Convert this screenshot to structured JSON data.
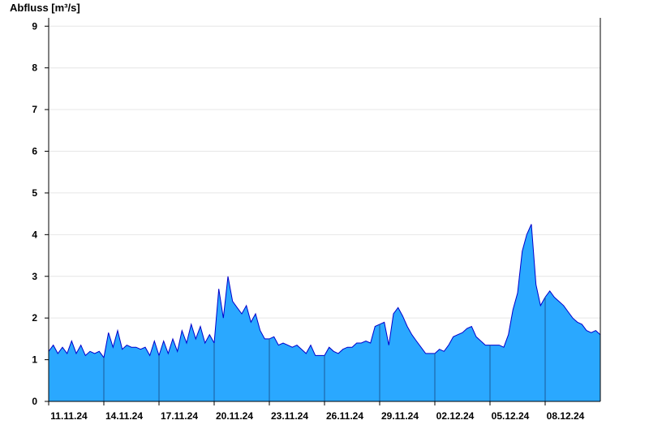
{
  "chart_data": {
    "type": "area",
    "ylabel": "Abfluss [m³/s]",
    "xlabel": "",
    "title": "",
    "ylim": [
      0,
      9.2
    ],
    "yticks": [
      0,
      1,
      2,
      3,
      4,
      5,
      6,
      7,
      8,
      9
    ],
    "xlim": [
      "2024-11-11T00:00",
      "2024-12-11T00:00"
    ],
    "xticks": [
      "11.11.24",
      "14.11.24",
      "17.11.24",
      "20.11.24",
      "23.11.24",
      "26.11.24",
      "29.11.24",
      "02.12.24",
      "05.12.24",
      "08.12.24"
    ],
    "grid": true,
    "fill_color": "#2aa8ff",
    "line_color": "#0000cc",
    "series": [
      {
        "x": [
          "2024-11-11T00:00",
          "2024-11-11T06:00",
          "2024-11-11T12:00",
          "2024-11-11T18:00",
          "2024-11-12T00:00",
          "2024-11-12T06:00",
          "2024-11-12T12:00",
          "2024-11-12T18:00",
          "2024-11-13T00:00",
          "2024-11-13T06:00",
          "2024-11-13T12:00",
          "2024-11-13T18:00",
          "2024-11-14T00:00",
          "2024-11-14T06:00",
          "2024-11-14T12:00",
          "2024-11-14T18:00",
          "2024-11-15T00:00",
          "2024-11-15T06:00",
          "2024-11-15T12:00",
          "2024-11-15T18:00",
          "2024-11-16T00:00",
          "2024-11-16T06:00",
          "2024-11-16T12:00",
          "2024-11-16T18:00",
          "2024-11-17T00:00",
          "2024-11-17T06:00",
          "2024-11-17T12:00",
          "2024-11-17T18:00",
          "2024-11-18T00:00",
          "2024-11-18T06:00",
          "2024-11-18T12:00",
          "2024-11-18T18:00",
          "2024-11-19T00:00",
          "2024-11-19T06:00",
          "2024-11-19T12:00",
          "2024-11-19T18:00",
          "2024-11-20T00:00",
          "2024-11-20T06:00",
          "2024-11-20T12:00",
          "2024-11-20T18:00",
          "2024-11-21T00:00",
          "2024-11-21T06:00",
          "2024-11-21T12:00",
          "2024-11-21T18:00",
          "2024-11-22T00:00",
          "2024-11-22T06:00",
          "2024-11-22T12:00",
          "2024-11-22T18:00",
          "2024-11-23T00:00",
          "2024-11-23T06:00",
          "2024-11-23T12:00",
          "2024-11-23T18:00",
          "2024-11-24T00:00",
          "2024-11-24T06:00",
          "2024-11-24T12:00",
          "2024-11-24T18:00",
          "2024-11-25T00:00",
          "2024-11-25T06:00",
          "2024-11-25T12:00",
          "2024-11-25T18:00",
          "2024-11-26T00:00",
          "2024-11-26T06:00",
          "2024-11-26T12:00",
          "2024-11-26T18:00",
          "2024-11-27T00:00",
          "2024-11-27T06:00",
          "2024-11-27T12:00",
          "2024-11-27T18:00",
          "2024-11-28T00:00",
          "2024-11-28T06:00",
          "2024-11-28T12:00",
          "2024-11-28T18:00",
          "2024-11-29T00:00",
          "2024-11-29T06:00",
          "2024-11-29T12:00",
          "2024-11-29T18:00",
          "2024-11-30T00:00",
          "2024-11-30T06:00",
          "2024-11-30T12:00",
          "2024-11-30T18:00",
          "2024-12-01T00:00",
          "2024-12-01T06:00",
          "2024-12-01T12:00",
          "2024-12-01T18:00",
          "2024-12-02T00:00",
          "2024-12-02T06:00",
          "2024-12-02T12:00",
          "2024-12-02T18:00",
          "2024-12-03T00:00",
          "2024-12-03T06:00",
          "2024-12-03T12:00",
          "2024-12-03T18:00",
          "2024-12-04T00:00",
          "2024-12-04T06:00",
          "2024-12-04T12:00",
          "2024-12-04T18:00",
          "2024-12-05T00:00",
          "2024-12-05T06:00",
          "2024-12-05T12:00",
          "2024-12-05T18:00",
          "2024-12-06T00:00",
          "2024-12-06T06:00",
          "2024-12-06T12:00",
          "2024-12-06T18:00",
          "2024-12-07T00:00",
          "2024-12-07T06:00",
          "2024-12-07T12:00",
          "2024-12-07T18:00",
          "2024-12-08T00:00",
          "2024-12-08T06:00",
          "2024-12-08T12:00",
          "2024-12-08T18:00",
          "2024-12-09T00:00",
          "2024-12-09T06:00",
          "2024-12-09T12:00",
          "2024-12-09T18:00",
          "2024-12-10T00:00",
          "2024-12-10T06:00",
          "2024-12-10T12:00",
          "2024-12-10T18:00",
          "2024-12-11T00:00"
        ],
        "values": [
          1.2,
          1.35,
          1.15,
          1.3,
          1.15,
          1.45,
          1.15,
          1.35,
          1.1,
          1.2,
          1.15,
          1.2,
          1.05,
          1.65,
          1.3,
          1.7,
          1.25,
          1.35,
          1.3,
          1.3,
          1.25,
          1.3,
          1.1,
          1.45,
          1.1,
          1.45,
          1.15,
          1.5,
          1.2,
          1.7,
          1.4,
          1.85,
          1.5,
          1.8,
          1.4,
          1.6,
          1.4,
          2.7,
          2.0,
          3.0,
          2.4,
          2.25,
          2.1,
          2.3,
          1.9,
          2.1,
          1.7,
          1.5,
          1.5,
          1.55,
          1.35,
          1.4,
          1.35,
          1.3,
          1.35,
          1.25,
          1.15,
          1.35,
          1.1,
          1.1,
          1.1,
          1.3,
          1.2,
          1.15,
          1.25,
          1.3,
          1.3,
          1.4,
          1.4,
          1.45,
          1.4,
          1.8,
          1.85,
          1.9,
          1.35,
          2.1,
          2.25,
          2.05,
          1.8,
          1.6,
          1.45,
          1.3,
          1.15,
          1.15,
          1.15,
          1.25,
          1.2,
          1.35,
          1.55,
          1.6,
          1.65,
          1.75,
          1.8,
          1.55,
          1.45,
          1.35,
          1.35,
          1.35,
          1.35,
          1.3,
          1.6,
          2.2,
          2.6,
          3.6,
          4.0,
          4.25,
          2.8,
          2.3,
          2.5,
          2.65,
          2.5,
          2.4,
          2.3,
          2.15,
          2.0,
          1.9,
          1.85,
          1.7,
          1.65,
          1.7,
          1.6
        ]
      }
    ]
  }
}
